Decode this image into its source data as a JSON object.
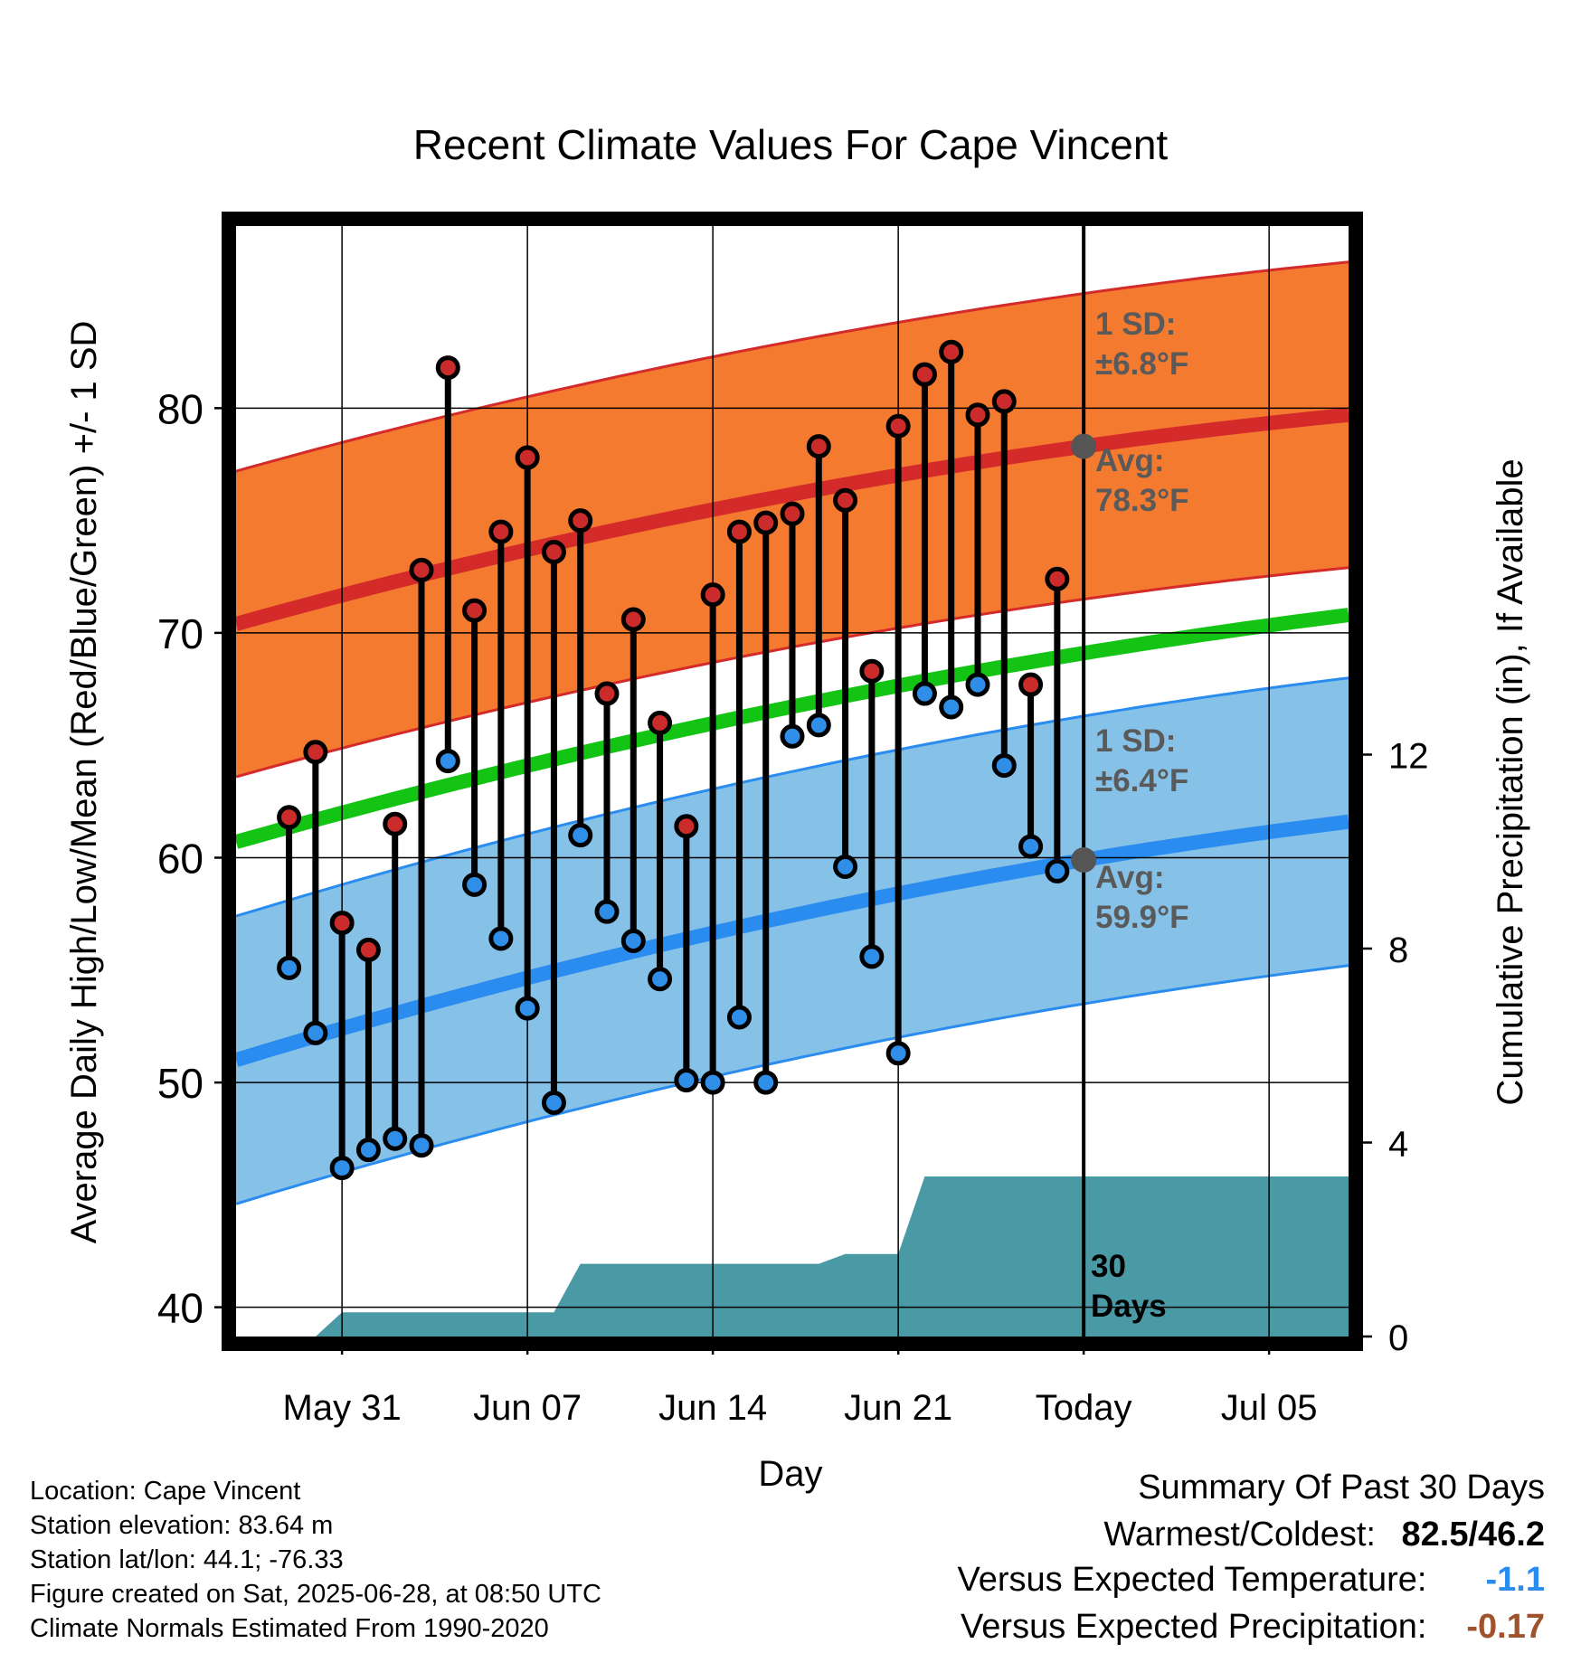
{
  "chart_data": {
    "type": "line",
    "title": "Recent Climate Values For Cape Vincent",
    "xlabel": "Day",
    "ylabel": "Average Daily High/Low/Mean (Red/Blue/Green) +/- 1 SD",
    "y2label": "Cumulative Precipitation (in), If Available",
    "ylim": [
      38.7,
      88.1
    ],
    "y2lim": [
      0,
      22.9
    ],
    "xlim": [
      "2025-05-27",
      "2025-07-08"
    ],
    "yticks": [
      "40",
      "50",
      "60",
      "70",
      "80"
    ],
    "y2ticks": [
      "0",
      "4",
      "8",
      "12"
    ],
    "xticks": [
      {
        "date": "2025-05-31",
        "label": "May 31"
      },
      {
        "date": "2025-06-07",
        "label": "Jun 07"
      },
      {
        "date": "2025-06-14",
        "label": "Jun 14"
      },
      {
        "date": "2025-06-21",
        "label": "Jun 21"
      },
      {
        "date": "2025-06-28",
        "label": "Today"
      },
      {
        "date": "2025-07-05",
        "label": "Jul 05"
      }
    ],
    "grid": true,
    "today": "2025-06-28",
    "days": [
      "2025-05-29",
      "2025-05-30",
      "2025-05-31",
      "2025-06-01",
      "2025-06-02",
      "2025-06-03",
      "2025-06-04",
      "2025-06-05",
      "2025-06-06",
      "2025-06-07",
      "2025-06-08",
      "2025-06-09",
      "2025-06-10",
      "2025-06-11",
      "2025-06-12",
      "2025-06-13",
      "2025-06-14",
      "2025-06-15",
      "2025-06-16",
      "2025-06-17",
      "2025-06-18",
      "2025-06-19",
      "2025-06-20",
      "2025-06-21",
      "2025-06-22",
      "2025-06-23",
      "2025-06-24",
      "2025-06-25",
      "2025-06-26",
      "2025-06-27"
    ],
    "highs": [
      61.8,
      64.7,
      57.1,
      55.9,
      61.5,
      72.8,
      81.8,
      71.0,
      74.5,
      77.8,
      73.6,
      75.0,
      67.3,
      70.6,
      66.0,
      61.4,
      71.7,
      74.5,
      74.9,
      75.3,
      78.3,
      75.9,
      68.3,
      79.2,
      81.5,
      82.5,
      79.7,
      80.3,
      67.7,
      72.4
    ],
    "lows": [
      55.1,
      52.2,
      46.2,
      47.0,
      47.5,
      47.2,
      64.3,
      58.8,
      56.4,
      53.3,
      49.1,
      61.0,
      57.6,
      56.3,
      54.6,
      50.1,
      50.0,
      52.9,
      50.0,
      65.4,
      65.9,
      59.6,
      55.6,
      51.3,
      67.3,
      66.7,
      67.7,
      64.1,
      60.5,
      59.4
    ],
    "normals": {
      "dates": [
        "2025-05-27",
        "2025-06-28",
        "2025-07-08"
      ],
      "high_avg": [
        70.4,
        78.3,
        79.7
      ],
      "high_sd": 6.8,
      "low_avg": [
        51.0,
        59.9,
        61.6
      ],
      "low_sd": 6.4,
      "mean_avg": [
        60.7,
        69.1,
        70.8
      ]
    },
    "precip": {
      "dates": [
        "2025-05-27",
        "2025-05-29",
        "2025-05-30",
        "2025-05-31",
        "2025-06-01",
        "2025-06-02",
        "2025-06-03",
        "2025-06-04",
        "2025-06-05",
        "2025-06-06",
        "2025-06-07",
        "2025-06-08",
        "2025-06-09",
        "2025-06-10",
        "2025-06-11",
        "2025-06-12",
        "2025-06-13",
        "2025-06-14",
        "2025-06-15",
        "2025-06-16",
        "2025-06-17",
        "2025-06-18",
        "2025-06-19",
        "2025-06-20",
        "2025-06-21",
        "2025-06-22",
        "2025-06-23",
        "2025-06-24",
        "2025-06-25",
        "2025-06-26",
        "2025-06-27",
        "2025-07-08"
      ],
      "values": [
        0,
        0,
        0.0,
        0.5,
        0.5,
        0.5,
        0.5,
        0.5,
        0.5,
        0.5,
        0.5,
        0.5,
        1.5,
        1.5,
        1.5,
        1.5,
        1.5,
        1.5,
        1.5,
        1.5,
        1.5,
        1.5,
        1.7,
        1.7,
        1.7,
        3.3,
        3.3,
        3.3,
        3.3,
        3.3,
        3.3,
        3.3
      ]
    },
    "annotations": {
      "high_sd_label": [
        "1 SD:",
        "±6.8°F"
      ],
      "high_avg_label": [
        "Avg:",
        "78.3°F"
      ],
      "low_sd_label": [
        "1 SD:",
        "±6.4°F"
      ],
      "low_avg_label": [
        "Avg:",
        "59.9°F"
      ],
      "days_label": [
        "30",
        "Days"
      ]
    },
    "colors": {
      "high_band": "#f47a30",
      "high_line": "#d42a2a",
      "high_edge": "#d42a2a",
      "low_band": "#86c1e8",
      "low_line": "#2a8cef",
      "low_edge": "#2a8cef",
      "mean_line": "#14c414",
      "precip": "#4a9aa5",
      "high_dot": "#cc2b2b",
      "low_dot": "#2f8fe8",
      "avg_dot": "#555555",
      "annotation_text": "#5a5a5a"
    }
  },
  "info": {
    "location": "Location: Cape Vincent",
    "elevation": "Station elevation: 83.64 m",
    "latlon": "Station lat/lon: 44.1; -76.33",
    "created": "Figure created on Sat, 2025-06-28, at 08:50 UTC",
    "normals": "Climate Normals Estimated From 1990-2020"
  },
  "summary": {
    "title": "Summary Of Past 30 Days",
    "warm_cold_label": "Warmest/Coldest:",
    "warm_cold_value": "82.5/46.2",
    "temp_label": "Versus Expected Temperature:",
    "temp_value": "-1.1",
    "temp_color": "#2a8cef",
    "precip_label": "Versus Expected Precipitation:",
    "precip_value": "-0.17",
    "precip_color": "#a0522d"
  }
}
